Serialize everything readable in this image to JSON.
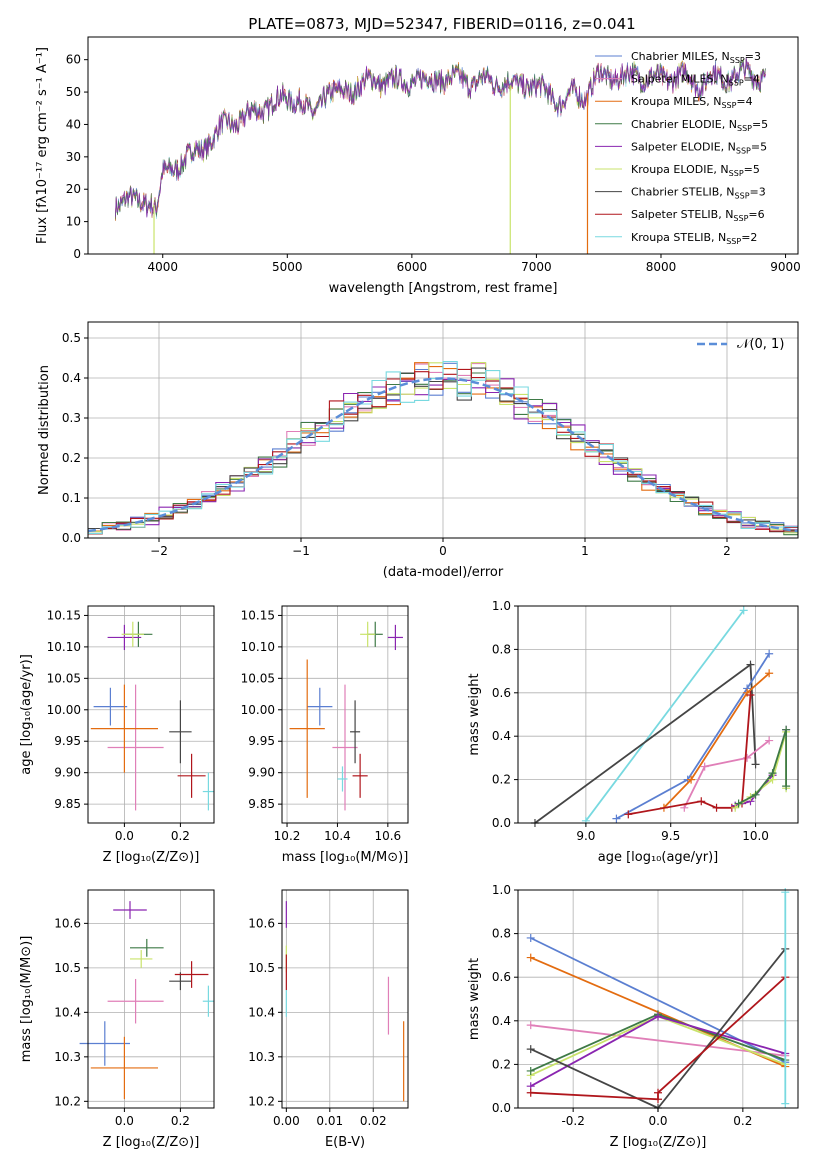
{
  "figure_title": "PLATE=0873, MJD=52347, FIBERID=0116, z=0.041",
  "colors": {
    "chabrier_miles": "#5b7fd1",
    "salpeter_miles": "#e07fb8",
    "kroupa_miles": "#e36c10",
    "chabrier_elodie": "#3e7a46",
    "salpeter_elodie": "#8a25b0",
    "kroupa_elodie": "#c9e36b",
    "chabrier_stelib": "#454545",
    "salpeter_stelib": "#b0161c",
    "kroupa_stelib": "#78d9e0",
    "normal": "#5b8ed8"
  },
  "chart_data": [
    {
      "id": "spectrum",
      "type": "line",
      "xlabel": "wavelength [Angstrom, rest frame]",
      "ylabel": "Flux [fλ10⁻¹⁷ erg cm⁻² s⁻¹ A⁻¹]",
      "xlim": [
        3400,
        9100
      ],
      "ylim": [
        0,
        67
      ],
      "xticks": [
        4000,
        5000,
        6000,
        7000,
        8000,
        9000
      ],
      "yticks": [
        0,
        10,
        20,
        30,
        40,
        50,
        60
      ],
      "legend_position": "top-right",
      "continuum": [
        [
          3620,
          15
        ],
        [
          3700,
          18
        ],
        [
          3800,
          15
        ],
        [
          3900,
          17
        ],
        [
          3950,
          14
        ],
        [
          4000,
          24
        ],
        [
          4100,
          27
        ],
        [
          4200,
          30
        ],
        [
          4300,
          32
        ],
        [
          4400,
          36
        ],
        [
          4500,
          40
        ],
        [
          4600,
          41
        ],
        [
          4700,
          43
        ],
        [
          4800,
          45
        ],
        [
          4900,
          47
        ],
        [
          5000,
          48
        ],
        [
          5100,
          48
        ],
        [
          5200,
          42
        ],
        [
          5300,
          50
        ],
        [
          5400,
          49
        ],
        [
          5500,
          51
        ],
        [
          5600,
          52
        ],
        [
          5700,
          54
        ],
        [
          5800,
          53
        ],
        [
          5900,
          53
        ],
        [
          6000,
          54
        ],
        [
          6100,
          53
        ],
        [
          6200,
          55
        ],
        [
          6300,
          53
        ],
        [
          6400,
          55
        ],
        [
          6500,
          52
        ],
        [
          6600,
          54
        ],
        [
          6700,
          53
        ],
        [
          6800,
          52
        ],
        [
          6900,
          53
        ],
        [
          7000,
          51
        ],
        [
          7100,
          50
        ],
        [
          7200,
          46
        ],
        [
          7300,
          50
        ],
        [
          7400,
          49
        ],
        [
          7500,
          55
        ],
        [
          7600,
          55
        ],
        [
          7700,
          54
        ],
        [
          7800,
          56
        ],
        [
          7900,
          54
        ],
        [
          8000,
          54
        ],
        [
          8100,
          55
        ],
        [
          8200,
          55
        ],
        [
          8300,
          52
        ],
        [
          8400,
          55
        ],
        [
          8500,
          54
        ],
        [
          8600,
          55
        ],
        [
          8700,
          56
        ],
        [
          8800,
          55
        ],
        [
          8840,
          54
        ]
      ],
      "drop_lines": [
        {
          "x": 3930,
          "series": "kroupa_elodie"
        },
        {
          "x": 6790,
          "series": "kroupa_elodie"
        },
        {
          "x": 7410,
          "series": "kroupa_miles"
        }
      ],
      "legend": [
        {
          "key": "chabrier_miles",
          "label": "Chabrier MILES, N",
          "n": "3"
        },
        {
          "key": "salpeter_miles",
          "label": "Salpeter MILES, N",
          "n": "4"
        },
        {
          "key": "kroupa_miles",
          "label": "Kroupa MILES, N",
          "n": "4"
        },
        {
          "key": "chabrier_elodie",
          "label": "Chabrier ELODIE, N",
          "n": "5"
        },
        {
          "key": "salpeter_elodie",
          "label": "Salpeter ELODIE, N",
          "n": "5"
        },
        {
          "key": "kroupa_elodie",
          "label": "Kroupa ELODIE, N",
          "n": "5"
        },
        {
          "key": "chabrier_stelib",
          "label": "Chabrier STELIB, N",
          "n": "3"
        },
        {
          "key": "salpeter_stelib",
          "label": "Salpeter STELIB, N",
          "n": "6"
        },
        {
          "key": "kroupa_stelib",
          "label": "Kroupa STELIB, N",
          "n": "2"
        }
      ],
      "legend_sub": "SSP"
    },
    {
      "id": "residuals",
      "type": "histogram",
      "xlabel": "(data-model)/error",
      "ylabel": "Normed distribution",
      "xlim": [
        -2.5,
        2.5
      ],
      "ylim": [
        0,
        0.54
      ],
      "xticks": [
        -2,
        -1,
        0,
        1,
        2
      ],
      "yticks": [
        0.0,
        0.1,
        0.2,
        0.3,
        0.4,
        0.5
      ],
      "grid": true,
      "legend_label": "𝒩(0, 1)",
      "legend_position": "top-right",
      "bin_width": 0.1
    },
    {
      "id": "age_vs_Z",
      "type": "errorbar",
      "xlabel": "Z [log₁₀(Z/Z⊙)]",
      "ylabel": "age  [log₁₀(age/yr)]",
      "xlim": [
        -0.13,
        0.32
      ],
      "ylim": [
        9.82,
        10.165
      ],
      "xticks": [
        0.0,
        0.2
      ],
      "yticks": [
        9.85,
        9.9,
        9.95,
        10.0,
        10.05,
        10.1,
        10.15
      ],
      "points": [
        {
          "s": "chabrier_miles",
          "x": -0.05,
          "y": 10.005,
          "ex": 0.06,
          "ey": 0.03
        },
        {
          "s": "salpeter_miles",
          "x": 0.04,
          "y": 9.94,
          "ex": 0.1,
          "ey": 0.1
        },
        {
          "s": "kroupa_miles",
          "x": 0.0,
          "y": 9.97,
          "ex": 0.12,
          "ey": 0.07
        },
        {
          "s": "chabrier_elodie",
          "x": 0.05,
          "y": 10.12,
          "ex": 0.05,
          "ey": 0.02
        },
        {
          "s": "salpeter_elodie",
          "x": 0.0,
          "y": 10.115,
          "ex": 0.06,
          "ey": 0.02
        },
        {
          "s": "kroupa_elodie",
          "x": 0.03,
          "y": 10.12,
          "ex": 0.04,
          "ey": 0.02
        },
        {
          "s": "chabrier_stelib",
          "x": 0.2,
          "y": 9.965,
          "ex": 0.04,
          "ey": 0.05
        },
        {
          "s": "salpeter_stelib",
          "x": 0.24,
          "y": 9.895,
          "ex": 0.05,
          "ey": 0.035
        },
        {
          "s": "kroupa_stelib",
          "x": 0.3,
          "y": 9.87,
          "ex": 0.02,
          "ey": 0.03
        }
      ]
    },
    {
      "id": "age_vs_mass",
      "type": "errorbar",
      "xlabel": "mass [log₁₀(M/M⊙)]",
      "ylabel": "",
      "xlim": [
        10.18,
        10.68
      ],
      "ylim": [
        9.82,
        10.165
      ],
      "xticks": [
        10.2,
        10.4,
        10.6
      ],
      "yticks": [
        9.85,
        9.9,
        9.95,
        10.0,
        10.05,
        10.1,
        10.15
      ],
      "points": [
        {
          "s": "chabrier_miles",
          "x": 10.33,
          "y": 10.005,
          "ex": 0.05,
          "ey": 0.03
        },
        {
          "s": "salpeter_miles",
          "x": 10.43,
          "y": 9.94,
          "ex": 0.05,
          "ey": 0.1
        },
        {
          "s": "kroupa_miles",
          "x": 10.28,
          "y": 9.97,
          "ex": 0.07,
          "ey": 0.11
        },
        {
          "s": "chabrier_elodie",
          "x": 10.55,
          "y": 10.12,
          "ex": 0.03,
          "ey": 0.02
        },
        {
          "s": "salpeter_elodie",
          "x": 10.63,
          "y": 10.115,
          "ex": 0.03,
          "ey": 0.02
        },
        {
          "s": "kroupa_elodie",
          "x": 10.52,
          "y": 10.12,
          "ex": 0.03,
          "ey": 0.02
        },
        {
          "s": "chabrier_stelib",
          "x": 10.47,
          "y": 9.965,
          "ex": 0.02,
          "ey": 0.05
        },
        {
          "s": "salpeter_stelib",
          "x": 10.49,
          "y": 9.895,
          "ex": 0.03,
          "ey": 0.035
        },
        {
          "s": "kroupa_stelib",
          "x": 10.42,
          "y": 9.89,
          "ex": 0.02,
          "ey": 0.02
        }
      ]
    },
    {
      "id": "massweight_vs_age",
      "type": "line",
      "xlabel": "age  [log₁₀(age/yr)]",
      "ylabel": "mass weight",
      "xlim": [
        8.6,
        10.25
      ],
      "ylim": [
        0,
        1.0
      ],
      "xticks": [
        9.0,
        9.5,
        10.0
      ],
      "yticks": [
        0.0,
        0.2,
        0.4,
        0.6,
        0.8,
        1.0
      ],
      "series": [
        {
          "s": "kroupa_stelib",
          "pts": [
            [
              9.0,
              0.01
            ],
            [
              9.93,
              0.98
            ]
          ]
        },
        {
          "s": "chabrier_stelib",
          "pts": [
            [
              8.7,
              0.0
            ],
            [
              9.97,
              0.73
            ],
            [
              10.0,
              0.27
            ]
          ]
        },
        {
          "s": "chabrier_miles",
          "pts": [
            [
              9.18,
              0.02
            ],
            [
              9.6,
              0.2
            ],
            [
              9.95,
              0.62
            ],
            [
              10.08,
              0.78
            ]
          ]
        },
        {
          "s": "kroupa_miles",
          "pts": [
            [
              9.46,
              0.07
            ],
            [
              9.62,
              0.2
            ],
            [
              9.95,
              0.6
            ],
            [
              10.08,
              0.69
            ]
          ]
        },
        {
          "s": "salpeter_miles",
          "pts": [
            [
              9.58,
              0.07
            ],
            [
              9.7,
              0.26
            ],
            [
              9.95,
              0.3
            ],
            [
              10.08,
              0.38
            ]
          ]
        },
        {
          "s": "salpeter_stelib",
          "pts": [
            [
              9.25,
              0.04
            ],
            [
              9.68,
              0.1
            ],
            [
              9.77,
              0.07
            ],
            [
              9.86,
              0.07
            ],
            [
              9.92,
              0.09
            ],
            [
              9.97,
              0.59
            ]
          ]
        },
        {
          "s": "salpeter_elodie",
          "pts": [
            [
              9.88,
              0.08
            ],
            [
              9.97,
              0.1
            ],
            [
              10.1,
              0.22
            ],
            [
              10.18,
              0.43
            ]
          ]
        },
        {
          "s": "kroupa_elodie",
          "pts": [
            [
              9.88,
              0.07
            ],
            [
              9.97,
              0.12
            ],
            [
              10.1,
              0.2
            ],
            [
              10.18,
              0.42
            ],
            [
              10.18,
              0.16
            ]
          ]
        },
        {
          "s": "chabrier_elodie",
          "pts": [
            [
              9.9,
              0.09
            ],
            [
              10.0,
              0.13
            ],
            [
              10.1,
              0.23
            ],
            [
              10.18,
              0.43
            ],
            [
              10.18,
              0.17
            ]
          ]
        }
      ]
    },
    {
      "id": "mass_vs_Z",
      "type": "errorbar",
      "xlabel": "Z [log₁₀(Z/Z⊙)]",
      "ylabel": "mass [log₁₀(M/M⊙)]",
      "xlim": [
        -0.13,
        0.32
      ],
      "ylim": [
        10.185,
        10.675
      ],
      "xticks": [
        0.0,
        0.2
      ],
      "yticks": [
        10.2,
        10.3,
        10.4,
        10.5,
        10.6
      ],
      "points": [
        {
          "s": "chabrier_miles",
          "x": -0.07,
          "y": 10.33,
          "ex": 0.09,
          "ey": 0.05
        },
        {
          "s": "salpeter_miles",
          "x": 0.04,
          "y": 10.425,
          "ex": 0.1,
          "ey": 0.05
        },
        {
          "s": "kroupa_miles",
          "x": 0.0,
          "y": 10.275,
          "ex": 0.12,
          "ey": 0.07
        },
        {
          "s": "chabrier_elodie",
          "x": 0.08,
          "y": 10.545,
          "ex": 0.06,
          "ey": 0.02
        },
        {
          "s": "salpeter_elodie",
          "x": 0.02,
          "y": 10.63,
          "ex": 0.06,
          "ey": 0.02
        },
        {
          "s": "kroupa_elodie",
          "x": 0.06,
          "y": 10.52,
          "ex": 0.04,
          "ey": 0.02
        },
        {
          "s": "chabrier_stelib",
          "x": 0.2,
          "y": 10.47,
          "ex": 0.04,
          "ey": 0.02
        },
        {
          "s": "salpeter_stelib",
          "x": 0.24,
          "y": 10.485,
          "ex": 0.06,
          "ey": 0.03
        },
        {
          "s": "kroupa_stelib",
          "x": 0.3,
          "y": 10.425,
          "ex": 0.02,
          "ey": 0.035
        }
      ]
    },
    {
      "id": "mass_vs_ebv",
      "type": "errorbar",
      "xlabel": "E(B-V)",
      "ylabel": "",
      "xlim": [
        -0.001,
        0.028
      ],
      "ylim": [
        10.185,
        10.675
      ],
      "xticks": [
        0.0,
        0.01,
        0.02
      ],
      "yticks": [
        10.2,
        10.3,
        10.4,
        10.5,
        10.6
      ],
      "points": [
        {
          "s": "salpeter_elodie",
          "x": 0.0,
          "y": 10.62,
          "ex": 0,
          "ey": 0.03
        },
        {
          "s": "kroupa_elodie",
          "x": 0.0,
          "y": 10.52,
          "ex": 0,
          "ey": 0.03
        },
        {
          "s": "salpeter_stelib",
          "x": 0.0,
          "y": 10.49,
          "ex": 0,
          "ey": 0.04
        },
        {
          "s": "kroupa_stelib",
          "x": 0.0,
          "y": 10.42,
          "ex": 0,
          "ey": 0.03
        },
        {
          "s": "salpeter_miles",
          "x": 0.0235,
          "y": 10.415,
          "ex": 0,
          "ey": 0.065
        },
        {
          "s": "kroupa_miles",
          "x": 0.027,
          "y": 10.29,
          "ex": 0,
          "ey": 0.09
        }
      ]
    },
    {
      "id": "massweight_vs_Z",
      "type": "line",
      "xlabel": "Z [log₁₀(Z/Z⊙)]",
      "ylabel": "mass weight",
      "xlim": [
        -0.33,
        0.33
      ],
      "ylim": [
        0,
        1.0
      ],
      "xticks": [
        -0.2,
        0.0,
        0.2
      ],
      "yticks": [
        0.0,
        0.2,
        0.4,
        0.6,
        0.8,
        1.0
      ],
      "series": [
        {
          "s": "chabrier_miles",
          "pts": [
            [
              -0.3,
              0.78
            ],
            [
              0.3,
              0.21
            ]
          ]
        },
        {
          "s": "kroupa_miles",
          "pts": [
            [
              -0.3,
              0.69
            ],
            [
              0.3,
              0.19
            ]
          ]
        },
        {
          "s": "salpeter_miles",
          "pts": [
            [
              -0.3,
              0.38
            ],
            [
              0.3,
              0.24
            ]
          ]
        },
        {
          "s": "kroupa_elodie",
          "pts": [
            [
              -0.3,
              0.15
            ],
            [
              0.0,
              0.42
            ],
            [
              0.3,
              0.2
            ]
          ]
        },
        {
          "s": "chabrier_elodie",
          "pts": [
            [
              -0.3,
              0.17
            ],
            [
              0.0,
              0.43
            ],
            [
              0.3,
              0.22
            ]
          ]
        },
        {
          "s": "salpeter_elodie",
          "pts": [
            [
              -0.3,
              0.1
            ],
            [
              0.0,
              0.42
            ],
            [
              0.3,
              0.25
            ]
          ]
        },
        {
          "s": "chabrier_stelib",
          "pts": [
            [
              -0.3,
              0.27
            ],
            [
              0.0,
              0.0
            ],
            [
              0.3,
              0.73
            ]
          ]
        },
        {
          "s": "salpeter_stelib",
          "pts": [
            [
              -0.3,
              0.07
            ],
            [
              0.0,
              0.04
            ],
            [
              0.0,
              0.07
            ],
            [
              0.3,
              0.6
            ]
          ]
        },
        {
          "s": "kroupa_stelib",
          "pts": [
            [
              0.3,
              0.02
            ],
            [
              0.3,
              0.99
            ]
          ]
        }
      ]
    }
  ]
}
